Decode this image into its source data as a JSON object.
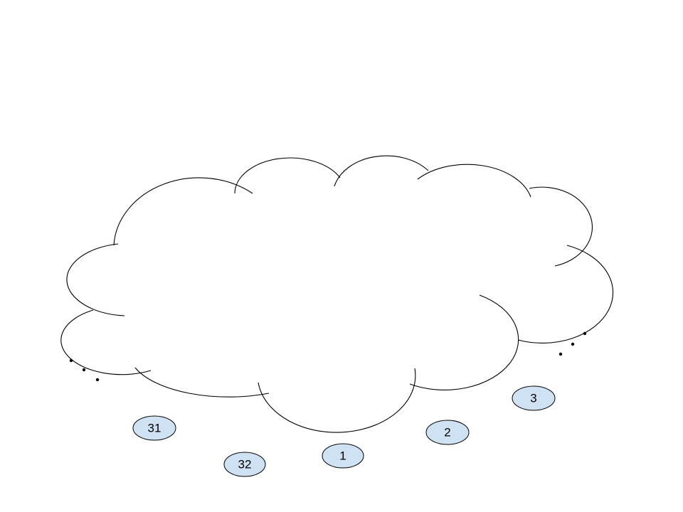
{
  "diagram": {
    "shape": "cloud",
    "node_fill": "#cfe2f3",
    "stroke": "#000000",
    "background": "#ffffff",
    "nodes": [
      {
        "label": "1"
      },
      {
        "label": "2"
      },
      {
        "label": "3"
      },
      {
        "label": "31"
      },
      {
        "label": "32"
      }
    ],
    "ellipsis_marks": [
      "left-ellipsis",
      "right-ellipsis"
    ]
  }
}
